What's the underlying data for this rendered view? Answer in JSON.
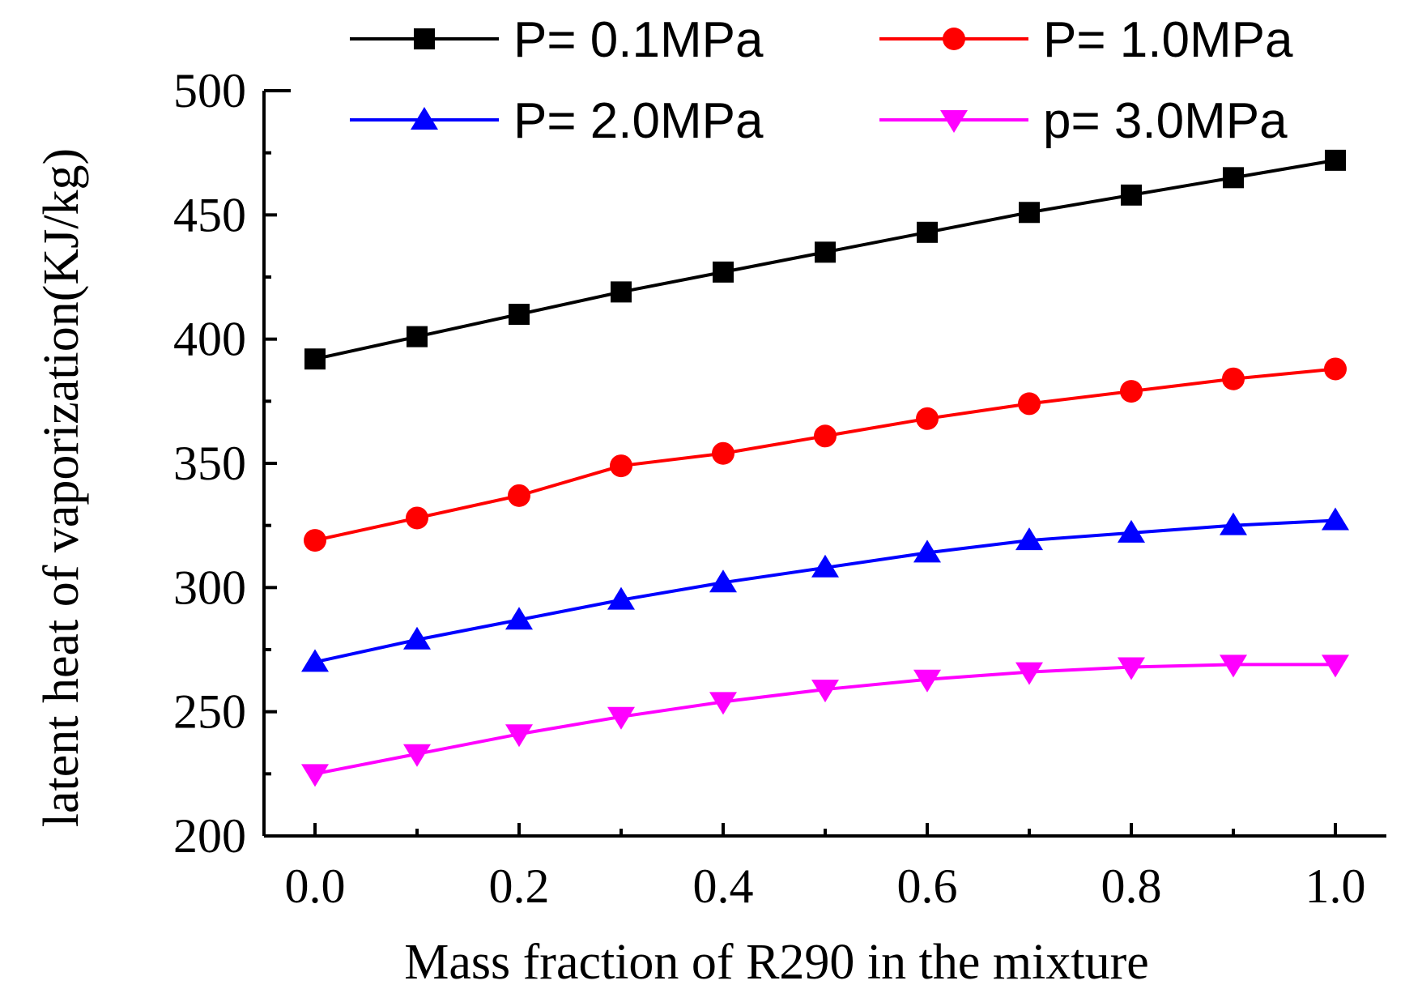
{
  "chart_data": {
    "type": "line",
    "title": "",
    "xlabel": "Mass fraction of R290 in the mixture",
    "ylabel": "latent heat of vaporization(KJ/kg)",
    "xlim": [
      -0.05,
      1.05
    ],
    "ylim": [
      200,
      500
    ],
    "x_ticks": [
      "0.0",
      "0.2",
      "0.4",
      "0.6",
      "0.8",
      "1.0"
    ],
    "y_ticks": [
      "200",
      "250",
      "300",
      "350",
      "400",
      "450",
      "500"
    ],
    "x_tick_values": [
      0,
      0.2,
      0.4,
      0.6,
      0.8,
      1.0
    ],
    "y_tick_values": [
      200,
      250,
      300,
      350,
      400,
      450,
      500
    ],
    "x": [
      0.0,
      0.1,
      0.2,
      0.3,
      0.4,
      0.5,
      0.6,
      0.7,
      0.8,
      0.9,
      1.0
    ],
    "grid": false,
    "legend_position": "top",
    "series": [
      {
        "name": "P= 0.1MPa",
        "color": "#000000",
        "marker": "square",
        "values": [
          392,
          401,
          410,
          419,
          427,
          435,
          443,
          451,
          458,
          465,
          472
        ]
      },
      {
        "name": "P= 1.0MPa",
        "color": "#ff0000",
        "marker": "circle",
        "values": [
          319,
          328,
          337,
          349,
          354,
          361,
          368,
          374,
          379,
          384,
          388
        ]
      },
      {
        "name": "P= 2.0MPa",
        "color": "#0000ff",
        "marker": "triangle-up",
        "values": [
          270,
          279,
          287,
          295,
          302,
          308,
          314,
          319,
          322,
          325,
          327
        ]
      },
      {
        "name": "p= 3.0MPa",
        "color": "#ff00ff",
        "marker": "triangle-down",
        "values": [
          225,
          233,
          241,
          248,
          254,
          259,
          263,
          266,
          268,
          269,
          269
        ]
      }
    ]
  }
}
